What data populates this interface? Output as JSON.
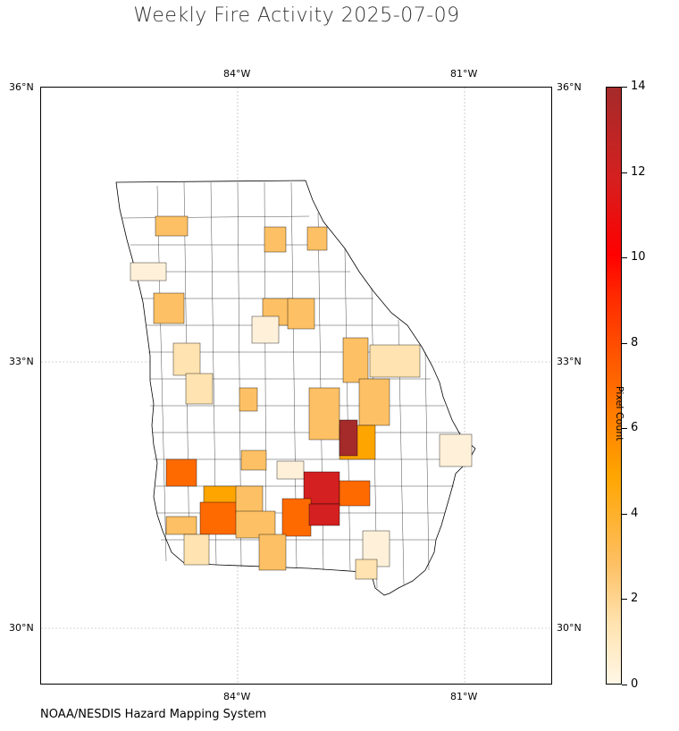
{
  "title": "Weekly Fire Activity 2025-07-09",
  "footer": "NOAA/NESDIS Hazard Mapping System",
  "map": {
    "lon_ticks": [
      "84°W",
      "81°W"
    ],
    "lat_ticks": [
      "36°N",
      "33°N",
      "30°N"
    ],
    "region": "Georgia counties"
  },
  "colorbar": {
    "label": "Pixel Count",
    "ticks": [
      "0",
      "2",
      "4",
      "6",
      "8",
      "10",
      "12",
      "14"
    ],
    "colors": [
      "#fff7e6",
      "#ffe3b0",
      "#fdc064",
      "#ffa500",
      "#ff6a00",
      "#ff2a00",
      "#ff0000",
      "#d42020",
      "#a52a2a"
    ]
  }
}
